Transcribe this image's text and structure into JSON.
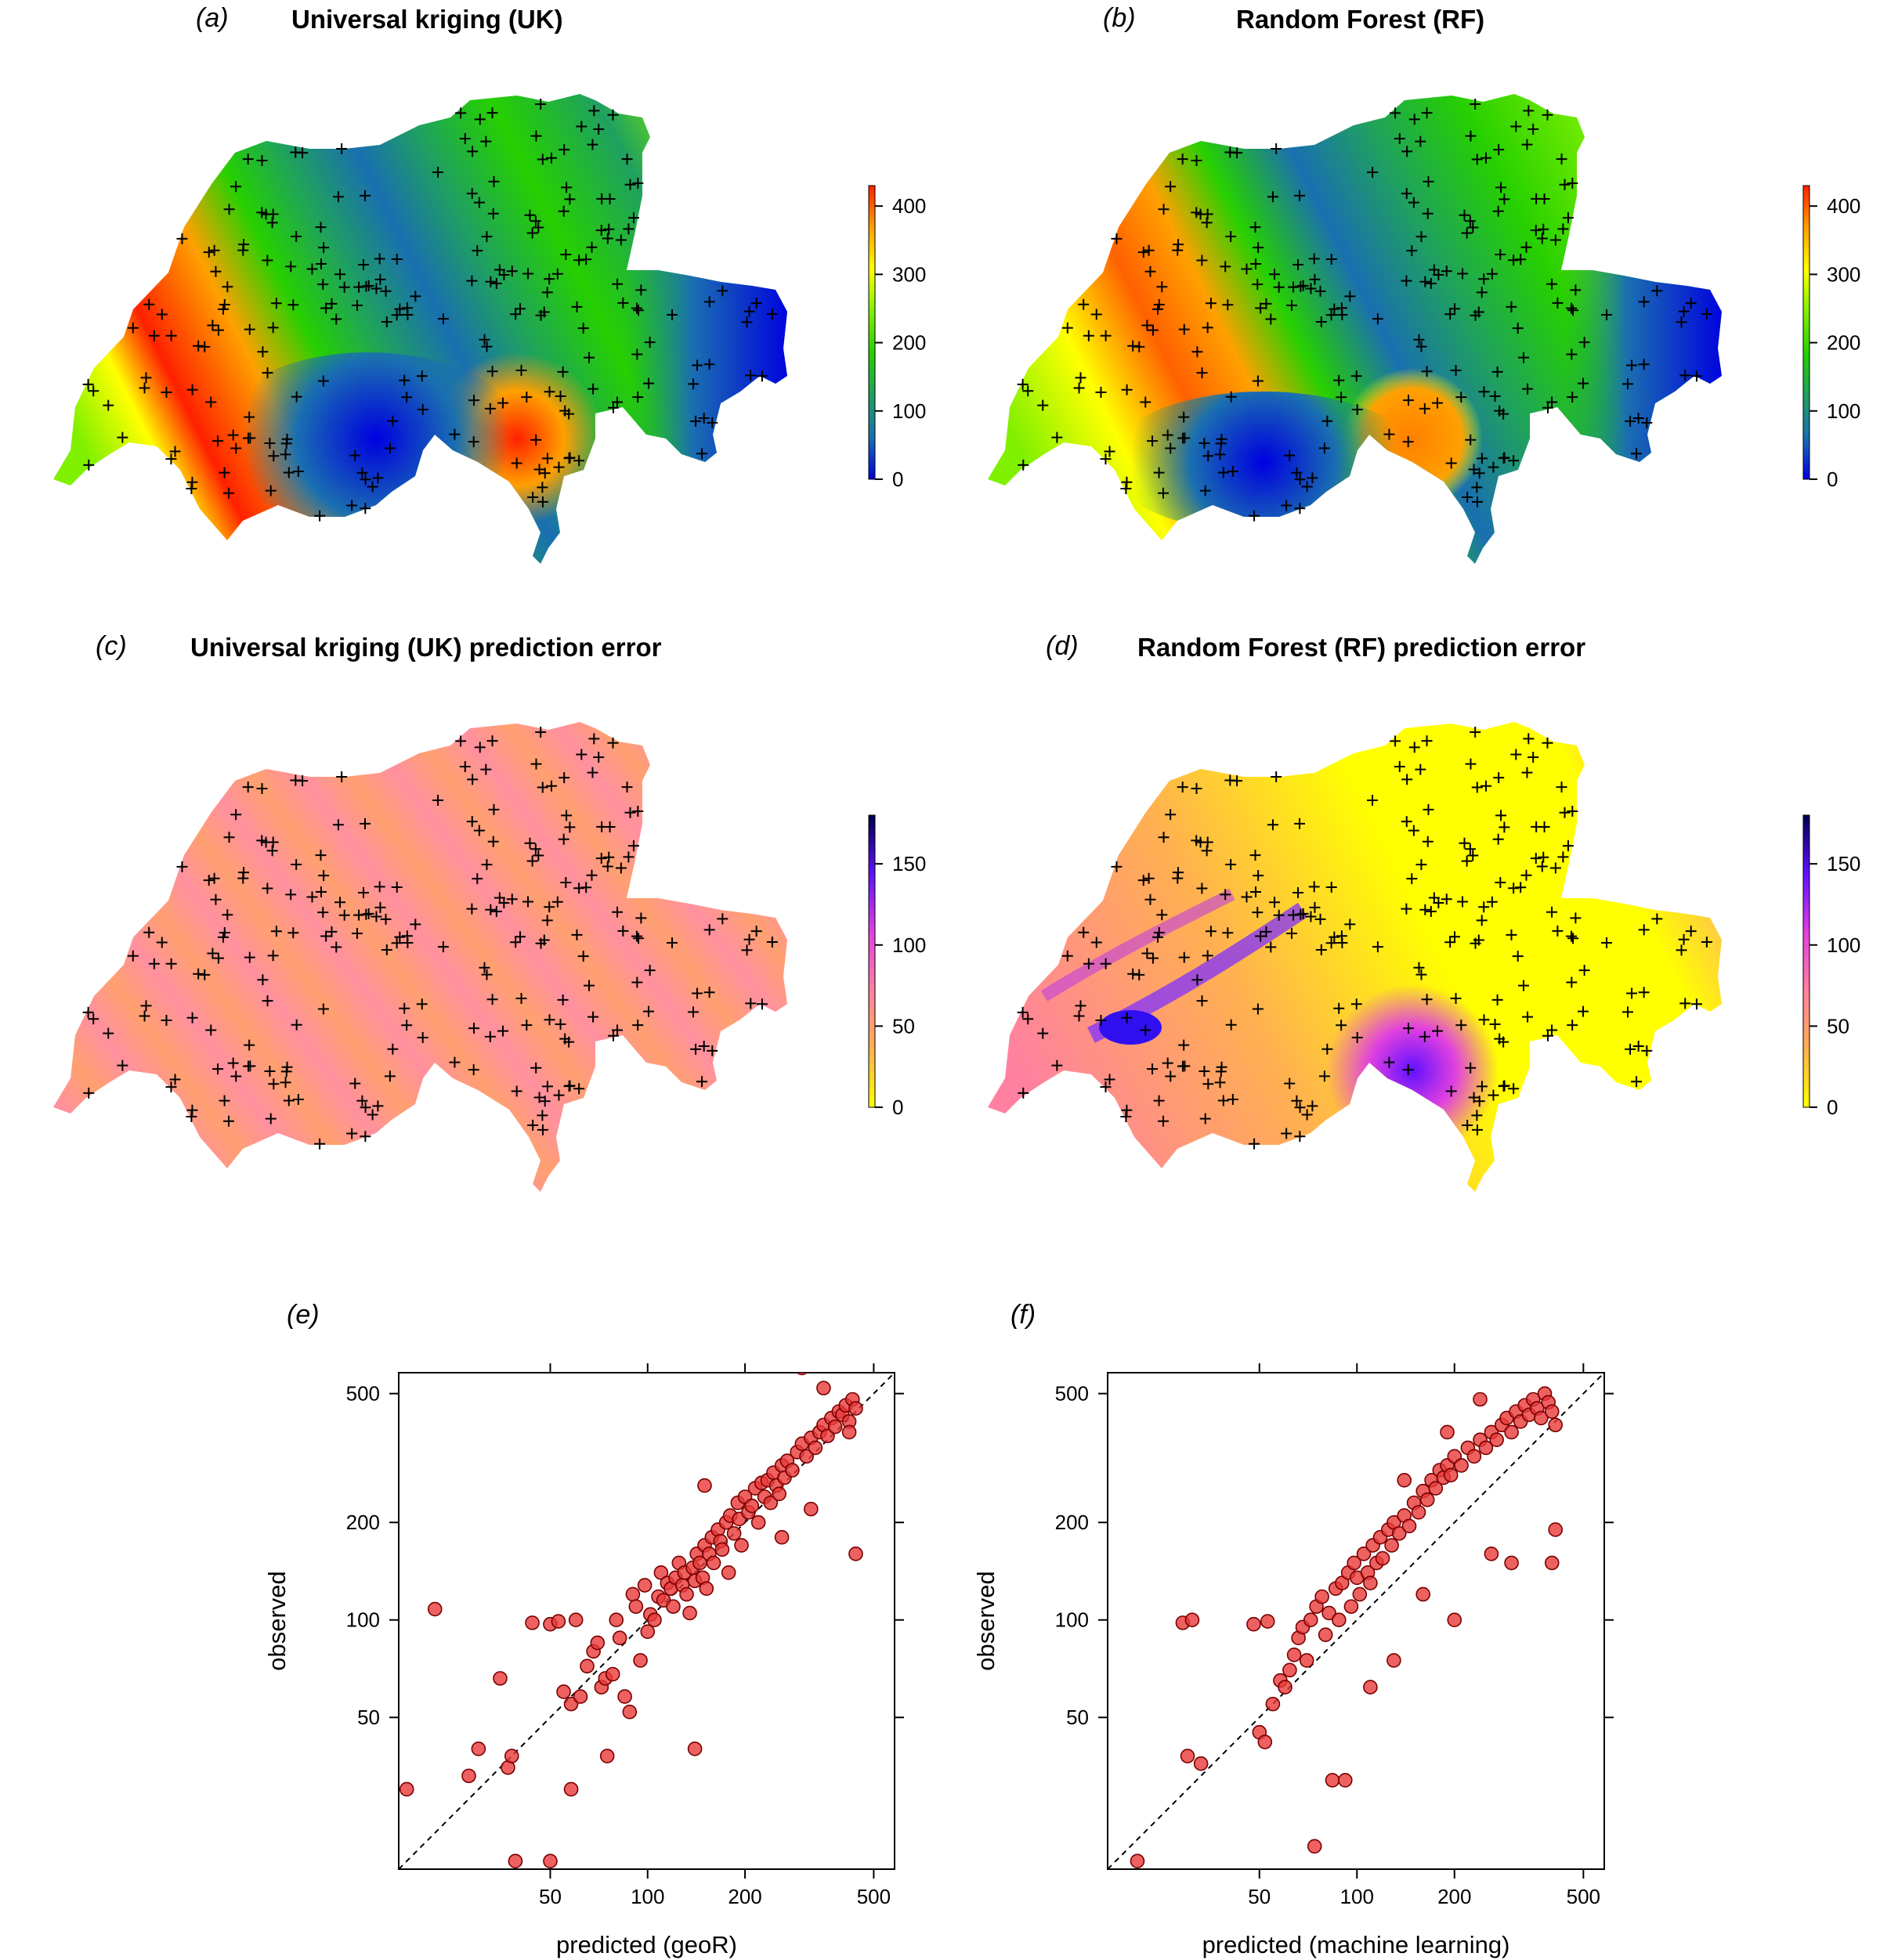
{
  "panels": {
    "a": {
      "label": "(a)",
      "title": "Universal kriging (UK)"
    },
    "b": {
      "label": "(b)",
      "title": "Random Forest (RF)"
    },
    "c": {
      "label": "(c)",
      "title": "Universal kriging (UK) prediction error"
    },
    "d": {
      "label": "(d)",
      "title": "Random Forest (RF) prediction error"
    },
    "e": {
      "label": "(e)"
    },
    "f": {
      "label": "(f)"
    }
  },
  "colors": {
    "precip_ramp": [
      "#0000e0",
      "#1a6fb0",
      "#1fa060",
      "#26d000",
      "#7ff000",
      "#ffff00",
      "#ffa000",
      "#ff2000"
    ],
    "error_ramp": [
      "#ffff00",
      "#ffb050",
      "#ff80a0",
      "#e040e0",
      "#6010ff",
      "#000050"
    ],
    "point_fill": "#e83a3a",
    "point_stroke": "#7a0000"
  },
  "chart_data": [
    {
      "panel": "a",
      "type": "heatmap",
      "title": "Universal kriging (UK)",
      "colorbar": {
        "ticks": [
          0,
          100,
          200,
          300,
          400
        ],
        "range": [
          0,
          430
        ],
        "palette": "precip_ramp"
      }
    },
    {
      "panel": "b",
      "type": "heatmap",
      "title": "Random Forest (RF)",
      "colorbar": {
        "ticks": [
          0,
          100,
          200,
          300,
          400
        ],
        "range": [
          0,
          430
        ],
        "palette": "precip_ramp"
      }
    },
    {
      "panel": "c",
      "type": "heatmap",
      "title": "Universal kriging (UK) prediction error",
      "colorbar": {
        "ticks": [
          0,
          50,
          100,
          150
        ],
        "range": [
          0,
          180
        ],
        "palette": "error_ramp"
      }
    },
    {
      "panel": "d",
      "type": "heatmap",
      "title": "Random Forest (RF) prediction error",
      "colorbar": {
        "ticks": [
          0,
          50,
          100,
          150
        ],
        "range": [
          0,
          180
        ],
        "palette": "error_ramp"
      }
    },
    {
      "panel": "e",
      "type": "scatter",
      "xlabel": "predicted (geoR)",
      "ylabel": "observed",
      "xscale": "log",
      "yscale": "log",
      "xlim": [
        17,
        580
      ],
      "ylim": [
        17,
        580
      ],
      "xticks": [
        50,
        100,
        200,
        500
      ],
      "yticks": [
        50,
        100,
        200,
        500
      ],
      "reference_line": "1:1 dashed",
      "points": [
        [
          18,
          30
        ],
        [
          22,
          108
        ],
        [
          30,
          40
        ],
        [
          28,
          33
        ],
        [
          35,
          66
        ],
        [
          37,
          35
        ],
        [
          38,
          38
        ],
        [
          39,
          18
        ],
        [
          44,
          98
        ],
        [
          50,
          97
        ],
        [
          50,
          18
        ],
        [
          53,
          99
        ],
        [
          55,
          60
        ],
        [
          58,
          55
        ],
        [
          58,
          30
        ],
        [
          60,
          100
        ],
        [
          62,
          58
        ],
        [
          65,
          72
        ],
        [
          68,
          80
        ],
        [
          70,
          85
        ],
        [
          72,
          62
        ],
        [
          74,
          66
        ],
        [
          75,
          38
        ],
        [
          78,
          68
        ],
        [
          80,
          100
        ],
        [
          82,
          88
        ],
        [
          85,
          58
        ],
        [
          88,
          52
        ],
        [
          90,
          120
        ],
        [
          92,
          110
        ],
        [
          95,
          75
        ],
        [
          98,
          128
        ],
        [
          100,
          92
        ],
        [
          102,
          104
        ],
        [
          105,
          100
        ],
        [
          108,
          118
        ],
        [
          110,
          140
        ],
        [
          112,
          115
        ],
        [
          115,
          130
        ],
        [
          118,
          125
        ],
        [
          120,
          110
        ],
        [
          122,
          135
        ],
        [
          125,
          150
        ],
        [
          128,
          128
        ],
        [
          130,
          140
        ],
        [
          132,
          120
        ],
        [
          135,
          105
        ],
        [
          138,
          145
        ],
        [
          140,
          132
        ],
        [
          142,
          160
        ],
        [
          145,
          150
        ],
        [
          148,
          135
        ],
        [
          150,
          170
        ],
        [
          152,
          125
        ],
        [
          155,
          160
        ],
        [
          158,
          180
        ],
        [
          160,
          150
        ],
        [
          165,
          190
        ],
        [
          168,
          175
        ],
        [
          170,
          165
        ],
        [
          175,
          200
        ],
        [
          178,
          140
        ],
        [
          180,
          210
        ],
        [
          185,
          185
        ],
        [
          190,
          230
        ],
        [
          192,
          205
        ],
        [
          195,
          170
        ],
        [
          200,
          240
        ],
        [
          205,
          215
        ],
        [
          210,
          225
        ],
        [
          215,
          255
        ],
        [
          220,
          200
        ],
        [
          225,
          265
        ],
        [
          230,
          240
        ],
        [
          235,
          270
        ],
        [
          240,
          230
        ],
        [
          245,
          285
        ],
        [
          250,
          260
        ],
        [
          255,
          245
        ],
        [
          260,
          300
        ],
        [
          265,
          275
        ],
        [
          270,
          310
        ],
        [
          280,
          290
        ],
        [
          290,
          330
        ],
        [
          300,
          350
        ],
        [
          310,
          320
        ],
        [
          320,
          365
        ],
        [
          330,
          340
        ],
        [
          340,
          380
        ],
        [
          350,
          400
        ],
        [
          360,
          370
        ],
        [
          370,
          420
        ],
        [
          380,
          395
        ],
        [
          390,
          440
        ],
        [
          400,
          430
        ],
        [
          410,
          460
        ],
        [
          420,
          410
        ],
        [
          430,
          480
        ],
        [
          440,
          450
        ],
        [
          300,
          600
        ],
        [
          350,
          520
        ],
        [
          420,
          380
        ],
        [
          440,
          160
        ],
        [
          320,
          220
        ],
        [
          260,
          180
        ],
        [
          150,
          260
        ],
        [
          140,
          40
        ]
      ]
    },
    {
      "panel": "f",
      "type": "scatter",
      "xlabel": "predicted (machine learning)",
      "ylabel": "observed",
      "xscale": "log",
      "yscale": "log",
      "xlim": [
        17,
        580
      ],
      "ylim": [
        17,
        580
      ],
      "xticks": [
        50,
        100,
        200,
        500
      ],
      "yticks": [
        50,
        100,
        200,
        500
      ],
      "reference_line": "1:1 dashed",
      "points": [
        [
          21,
          18
        ],
        [
          29,
          98
        ],
        [
          31,
          100
        ],
        [
          30,
          38
        ],
        [
          33,
          36
        ],
        [
          48,
          97
        ],
        [
          50,
          45
        ],
        [
          52,
          42
        ],
        [
          53,
          99
        ],
        [
          55,
          55
        ],
        [
          58,
          65
        ],
        [
          60,
          62
        ],
        [
          62,
          70
        ],
        [
          64,
          78
        ],
        [
          66,
          88
        ],
        [
          68,
          95
        ],
        [
          70,
          75
        ],
        [
          72,
          100
        ],
        [
          74,
          20
        ],
        [
          75,
          110
        ],
        [
          78,
          118
        ],
        [
          80,
          90
        ],
        [
          82,
          105
        ],
        [
          84,
          32
        ],
        [
          86,
          125
        ],
        [
          88,
          100
        ],
        [
          90,
          130
        ],
        [
          92,
          32
        ],
        [
          94,
          140
        ],
        [
          96,
          110
        ],
        [
          98,
          150
        ],
        [
          100,
          135
        ],
        [
          102,
          120
        ],
        [
          105,
          160
        ],
        [
          108,
          140
        ],
        [
          110,
          130
        ],
        [
          112,
          170
        ],
        [
          115,
          150
        ],
        [
          118,
          180
        ],
        [
          120,
          155
        ],
        [
          125,
          190
        ],
        [
          128,
          170
        ],
        [
          130,
          200
        ],
        [
          135,
          185
        ],
        [
          140,
          210
        ],
        [
          145,
          195
        ],
        [
          150,
          230
        ],
        [
          155,
          215
        ],
        [
          160,
          250
        ],
        [
          165,
          235
        ],
        [
          170,
          270
        ],
        [
          175,
          255
        ],
        [
          180,
          290
        ],
        [
          185,
          275
        ],
        [
          190,
          300
        ],
        [
          195,
          280
        ],
        [
          200,
          320
        ],
        [
          210,
          300
        ],
        [
          220,
          340
        ],
        [
          230,
          320
        ],
        [
          240,
          360
        ],
        [
          250,
          340
        ],
        [
          260,
          380
        ],
        [
          270,
          360
        ],
        [
          280,
          400
        ],
        [
          290,
          420
        ],
        [
          300,
          380
        ],
        [
          310,
          440
        ],
        [
          320,
          410
        ],
        [
          330,
          460
        ],
        [
          340,
          430
        ],
        [
          350,
          480
        ],
        [
          360,
          450
        ],
        [
          370,
          420
        ],
        [
          380,
          500
        ],
        [
          390,
          470
        ],
        [
          400,
          440
        ],
        [
          410,
          400
        ],
        [
          240,
          480
        ],
        [
          190,
          380
        ],
        [
          140,
          270
        ],
        [
          200,
          100
        ],
        [
          260,
          160
        ],
        [
          300,
          150
        ],
        [
          410,
          190
        ],
        [
          400,
          150
        ],
        [
          160,
          120
        ],
        [
          130,
          75
        ],
        [
          110,
          62
        ]
      ]
    }
  ]
}
